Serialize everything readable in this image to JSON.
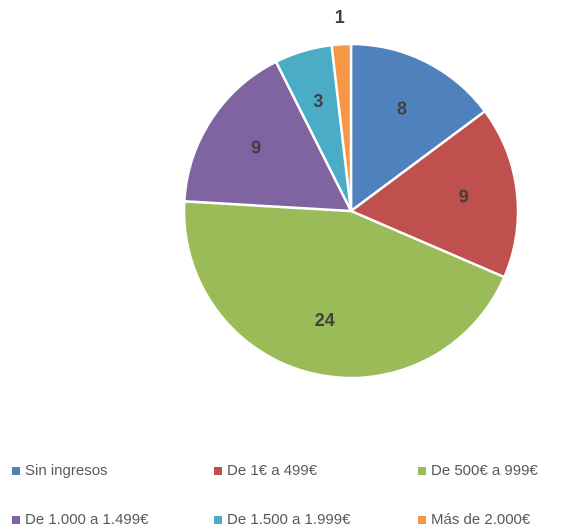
{
  "chart_data": {
    "type": "pie",
    "categories": [
      "Sin ingresos",
      "De 1€ a 499€",
      "De 500€ a 999€",
      "De 1.000 a 1.499€",
      "De 1.500 a 1.999€",
      "Más de 2.000€"
    ],
    "values": [
      8,
      9,
      24,
      9,
      3,
      1
    ],
    "colors": [
      "#4f81bd",
      "#c0504d",
      "#9bbb59",
      "#8064a2",
      "#4bacc6",
      "#f79646"
    ],
    "legend": "bottom"
  }
}
